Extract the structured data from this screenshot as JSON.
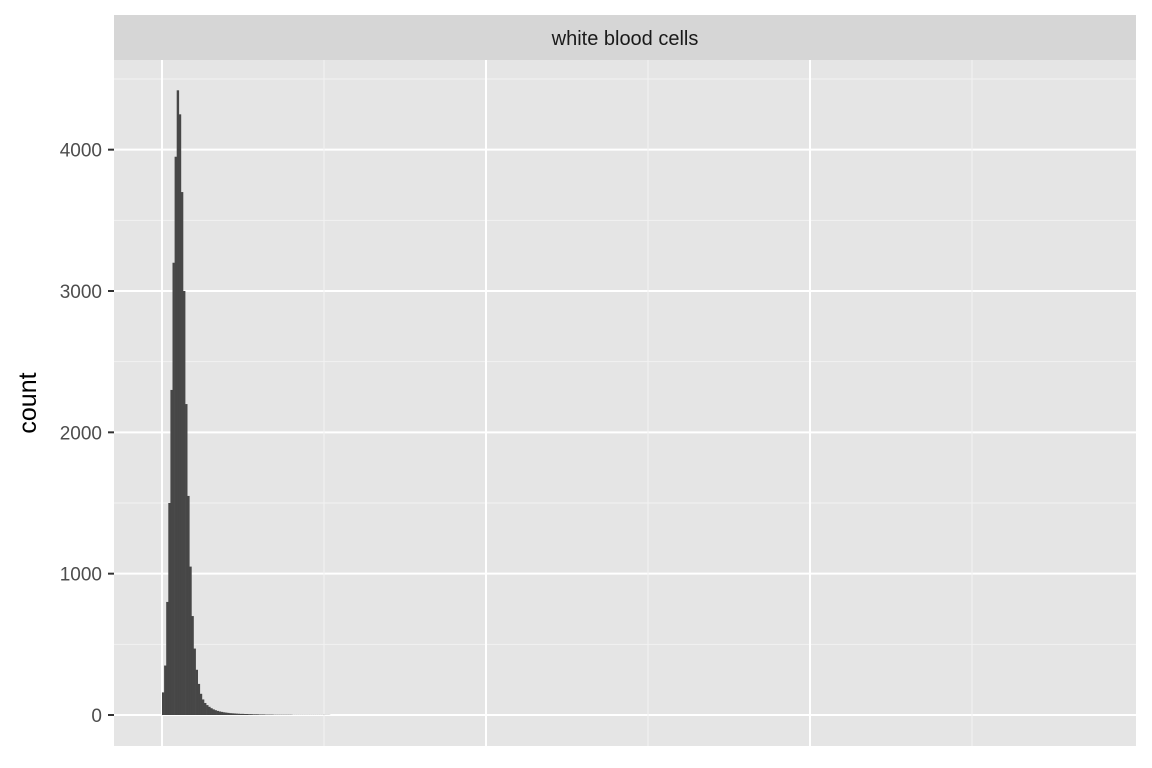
{
  "chart_data": {
    "type": "bar",
    "title": "",
    "facet_label": "white blood cells",
    "xlabel": "",
    "ylabel": "count",
    "ylim": [
      0,
      4500
    ],
    "yticks": [
      0,
      1000,
      2000,
      3000,
      4000
    ],
    "grid": true,
    "x": [
      0,
      1,
      2,
      3,
      4,
      5,
      6,
      7,
      8,
      9,
      10,
      11,
      12,
      13,
      14,
      15,
      16,
      17,
      18,
      19,
      20,
      21,
      22,
      23,
      24,
      25,
      26,
      27,
      28,
      29,
      30,
      31,
      32,
      33,
      34,
      35,
      36,
      37,
      38,
      39,
      40,
      41,
      42,
      43,
      44,
      45,
      46,
      47,
      48,
      49,
      50,
      51,
      52,
      53,
      54,
      55,
      56,
      57,
      58,
      59,
      60,
      61,
      62,
      63,
      64,
      65,
      66,
      67,
      68,
      69,
      70,
      71,
      72,
      73,
      74,
      75,
      76,
      77,
      78,
      79
    ],
    "values": [
      160,
      350,
      800,
      1500,
      2300,
      3200,
      3950,
      4420,
      4250,
      3700,
      3000,
      2200,
      1550,
      1050,
      700,
      470,
      320,
      220,
      150,
      110,
      85,
      70,
      58,
      48,
      40,
      34,
      29,
      25,
      22,
      19,
      17,
      15,
      13,
      12,
      11,
      10,
      9,
      8,
      8,
      7,
      7,
      6,
      6,
      5,
      5,
      5,
      4,
      4,
      4,
      3,
      3,
      3,
      3,
      2,
      2,
      2,
      2,
      2,
      2,
      2,
      2,
      2,
      1,
      1,
      1,
      1,
      1,
      1,
      1,
      1,
      1,
      1,
      1,
      1,
      1,
      1,
      1,
      1,
      1,
      1
    ],
    "colors": {
      "bar": "#474747",
      "panel": "#e5e5e5",
      "grid_major": "#ffffff",
      "strip": "#d6d6d6"
    }
  }
}
